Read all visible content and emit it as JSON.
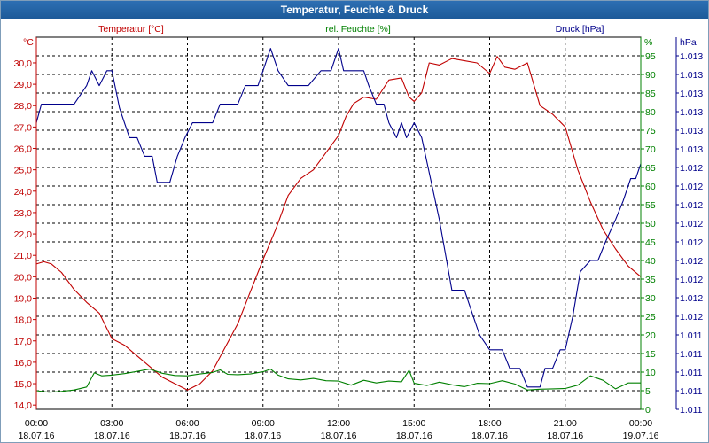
{
  "window": {
    "title": "Temperatur, Feuchte & Druck"
  },
  "colors": {
    "temperature": "#c00000",
    "humidity": "#008000",
    "pressure": "#00008b",
    "grid": "#000000",
    "titlebar": "#1d5a99"
  },
  "chart_data": {
    "type": "line",
    "title": "Temperatur, Feuchte & Druck",
    "legend": "top",
    "grid": true,
    "x_labels": [
      {
        "hour": 0,
        "time": "00:00",
        "date": "18.07.16"
      },
      {
        "hour": 3,
        "time": "03:00",
        "date": "18.07.16"
      },
      {
        "hour": 6,
        "time": "06:00",
        "date": "18.07.16"
      },
      {
        "hour": 9,
        "time": "09:00",
        "date": "18.07.16"
      },
      {
        "hour": 12,
        "time": "12:00",
        "date": "18.07.16"
      },
      {
        "hour": 15,
        "time": "15:00",
        "date": "18.07.16"
      },
      {
        "hour": 18,
        "time": "18:00",
        "date": "18.07.16"
      },
      {
        "hour": 21,
        "time": "21:00",
        "date": "18.07.16"
      },
      {
        "hour": 24,
        "time": "00:00",
        "date": "19.07.16"
      }
    ],
    "xlim": [
      0,
      24
    ],
    "axes": {
      "temperature": {
        "series_label": "Temperatur [°C]",
        "unit": "°C",
        "ylim": [
          13.8,
          31.2
        ],
        "ticks": [
          "14,0",
          "15,0",
          "16,0",
          "17,0",
          "18,0",
          "19,0",
          "20,0",
          "21,0",
          "22,0",
          "23,0",
          "24,0",
          "25,0",
          "26,0",
          "27,0",
          "28,0",
          "29,0",
          "30,0"
        ]
      },
      "humidity": {
        "series_label": "rel. Feuchte [%]",
        "unit": "%",
        "ylim": [
          0,
          100
        ],
        "ticks": [
          "0",
          "5",
          "10",
          "15",
          "20",
          "25",
          "30",
          "35",
          "40",
          "45",
          "50",
          "55",
          "60",
          "65",
          "70",
          "75",
          "80",
          "85",
          "90",
          "95"
        ]
      },
      "pressure": {
        "series_label": "Druck [hPa]",
        "unit": "hPa",
        "ylim": [
          0,
          100
        ],
        "ticks": [
          "1.011",
          "1.011",
          "1.011",
          "1.011",
          "1.011",
          "1.012",
          "1.012",
          "1.012",
          "1.012",
          "1.012",
          "1.012",
          "1.012",
          "1.012",
          "1.012",
          "1.013",
          "1.013",
          "1.013",
          "1.013",
          "1.013",
          "1.013"
        ]
      }
    },
    "series": [
      {
        "name": "Temperatur [°C]",
        "axis": "temperature",
        "points": [
          [
            0,
            20.6
          ],
          [
            0.3,
            20.7
          ],
          [
            0.6,
            20.6
          ],
          [
            1.0,
            20.2
          ],
          [
            1.5,
            19.4
          ],
          [
            2.0,
            18.8
          ],
          [
            2.5,
            18.3
          ],
          [
            3.0,
            17.1
          ],
          [
            3.5,
            16.8
          ],
          [
            4.0,
            16.3
          ],
          [
            4.5,
            15.8
          ],
          [
            5.0,
            15.3
          ],
          [
            5.5,
            15.0
          ],
          [
            6.0,
            14.7
          ],
          [
            6.5,
            15.0
          ],
          [
            7.0,
            15.6
          ],
          [
            7.5,
            16.7
          ],
          [
            8.0,
            17.8
          ],
          [
            8.5,
            19.3
          ],
          [
            9.0,
            20.8
          ],
          [
            9.5,
            22.2
          ],
          [
            10.0,
            23.8
          ],
          [
            10.5,
            24.6
          ],
          [
            11.0,
            25.0
          ],
          [
            11.5,
            25.8
          ],
          [
            12.0,
            26.6
          ],
          [
            12.3,
            27.5
          ],
          [
            12.6,
            28.1
          ],
          [
            13.0,
            28.4
          ],
          [
            13.5,
            28.3
          ],
          [
            14.0,
            29.2
          ],
          [
            14.5,
            29.3
          ],
          [
            14.8,
            28.4
          ],
          [
            15.0,
            28.2
          ],
          [
            15.3,
            28.6
          ],
          [
            15.6,
            30.0
          ],
          [
            16.0,
            29.9
          ],
          [
            16.5,
            30.2
          ],
          [
            17.0,
            30.1
          ],
          [
            17.5,
            30.0
          ],
          [
            18.0,
            29.5
          ],
          [
            18.3,
            30.3
          ],
          [
            18.6,
            29.8
          ],
          [
            19.0,
            29.7
          ],
          [
            19.5,
            30.0
          ],
          [
            20.0,
            28.0
          ],
          [
            20.5,
            27.6
          ],
          [
            21.0,
            27.0
          ],
          [
            21.5,
            25.0
          ],
          [
            22.0,
            23.5
          ],
          [
            22.5,
            22.2
          ],
          [
            23.0,
            21.3
          ],
          [
            23.5,
            20.5
          ],
          [
            24.0,
            20.0
          ]
        ]
      },
      {
        "name": "rel. Feuchte [%]",
        "axis": "humidity",
        "points": [
          [
            0,
            5
          ],
          [
            0.5,
            4.6
          ],
          [
            1.0,
            4.8
          ],
          [
            1.5,
            5.2
          ],
          [
            2.0,
            6.0
          ],
          [
            2.3,
            9.8
          ],
          [
            2.6,
            9.0
          ],
          [
            3.0,
            9.2
          ],
          [
            3.5,
            9.6
          ],
          [
            4.0,
            10.2
          ],
          [
            4.5,
            10.8
          ],
          [
            5.0,
            9.7
          ],
          [
            5.5,
            9.1
          ],
          [
            6.0,
            9.0
          ],
          [
            6.5,
            9.5
          ],
          [
            7.0,
            9.9
          ],
          [
            7.3,
            10.6
          ],
          [
            7.6,
            9.4
          ],
          [
            8.0,
            9.3
          ],
          [
            8.5,
            9.5
          ],
          [
            9.0,
            10.1
          ],
          [
            9.3,
            10.8
          ],
          [
            9.6,
            9.2
          ],
          [
            10.0,
            8.2
          ],
          [
            10.5,
            7.9
          ],
          [
            11.0,
            8.3
          ],
          [
            11.5,
            7.7
          ],
          [
            12.0,
            7.6
          ],
          [
            12.5,
            6.5
          ],
          [
            13.0,
            7.8
          ],
          [
            13.5,
            7.1
          ],
          [
            14.0,
            7.6
          ],
          [
            14.5,
            7.4
          ],
          [
            14.8,
            10.5
          ],
          [
            15.0,
            7.0
          ],
          [
            15.5,
            6.4
          ],
          [
            16.0,
            7.3
          ],
          [
            16.5,
            6.6
          ],
          [
            17.0,
            6.1
          ],
          [
            17.5,
            7.0
          ],
          [
            18.0,
            6.9
          ],
          [
            18.5,
            7.7
          ],
          [
            19.0,
            6.8
          ],
          [
            19.5,
            5.2
          ],
          [
            20.0,
            5.4
          ],
          [
            20.5,
            5.5
          ],
          [
            21.0,
            5.6
          ],
          [
            21.5,
            6.5
          ],
          [
            22.0,
            9.0
          ],
          [
            22.5,
            7.8
          ],
          [
            23.0,
            5.5
          ],
          [
            23.5,
            7.1
          ],
          [
            24.0,
            7.1
          ]
        ]
      },
      {
        "name": "Druck [hPa]",
        "axis": "pressure",
        "points": [
          [
            0,
            77
          ],
          [
            0.2,
            82
          ],
          [
            1.5,
            82
          ],
          [
            2.0,
            87
          ],
          [
            2.2,
            91
          ],
          [
            2.5,
            87
          ],
          [
            2.8,
            91
          ],
          [
            3.0,
            91
          ],
          [
            3.3,
            81
          ],
          [
            3.7,
            73
          ],
          [
            4.0,
            73
          ],
          [
            4.3,
            68
          ],
          [
            4.6,
            68
          ],
          [
            4.8,
            61
          ],
          [
            5.3,
            61
          ],
          [
            5.6,
            68
          ],
          [
            5.9,
            73
          ],
          [
            6.2,
            77
          ],
          [
            7.0,
            77
          ],
          [
            7.3,
            82
          ],
          [
            8.0,
            82
          ],
          [
            8.3,
            87
          ],
          [
            8.8,
            87
          ],
          [
            9.0,
            91
          ],
          [
            9.3,
            97
          ],
          [
            9.6,
            91
          ],
          [
            10.0,
            87
          ],
          [
            10.8,
            87
          ],
          [
            11.3,
            91
          ],
          [
            11.7,
            91
          ],
          [
            12.0,
            97
          ],
          [
            12.2,
            91
          ],
          [
            13.0,
            91
          ],
          [
            13.2,
            87
          ],
          [
            13.5,
            82
          ],
          [
            13.8,
            82
          ],
          [
            14.0,
            77
          ],
          [
            14.3,
            73
          ],
          [
            14.5,
            77
          ],
          [
            14.7,
            73
          ],
          [
            15.0,
            77
          ],
          [
            15.3,
            73
          ],
          [
            16.0,
            51
          ],
          [
            16.5,
            32
          ],
          [
            17.0,
            32
          ],
          [
            17.3,
            26
          ],
          [
            17.6,
            20
          ],
          [
            18.0,
            16
          ],
          [
            18.5,
            16
          ],
          [
            18.8,
            11
          ],
          [
            19.2,
            11
          ],
          [
            19.5,
            6
          ],
          [
            20.0,
            6
          ],
          [
            20.2,
            11
          ],
          [
            20.5,
            11
          ],
          [
            20.8,
            16
          ],
          [
            21.0,
            16
          ],
          [
            21.3,
            25
          ],
          [
            21.6,
            37
          ],
          [
            22.0,
            40
          ],
          [
            22.3,
            40
          ],
          [
            22.6,
            45
          ],
          [
            23.0,
            51
          ],
          [
            23.3,
            56
          ],
          [
            23.6,
            62
          ],
          [
            23.8,
            62
          ],
          [
            24.0,
            66
          ]
        ]
      }
    ]
  }
}
